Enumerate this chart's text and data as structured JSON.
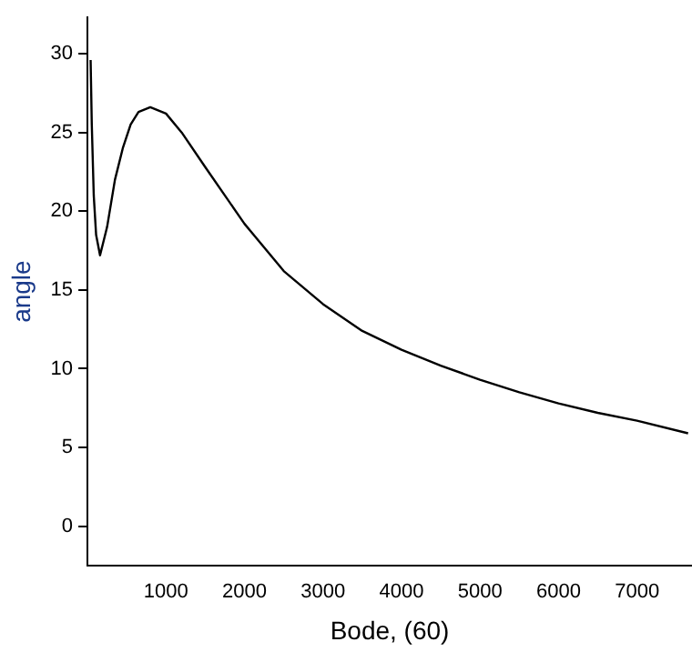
{
  "chart_data": {
    "type": "line",
    "xlabel": "Bode, (60)",
    "ylabel": "angle",
    "x": [
      40,
      55,
      80,
      110,
      160,
      250,
      350,
      450,
      550,
      650,
      800,
      1000,
      1200,
      1500,
      2000,
      2500,
      3000,
      3500,
      4000,
      4500,
      5000,
      5500,
      6000,
      6500,
      7000,
      7650
    ],
    "series": [
      {
        "color": "#000000",
        "values": [
          29.6,
          25.5,
          21,
          18.5,
          17.2,
          19,
          22,
          24,
          25.5,
          26.3,
          26.6,
          26.2,
          25,
          22.8,
          19.2,
          16.2,
          14.1,
          12.4,
          11.2,
          10.2,
          9.3,
          8.5,
          7.8,
          7.2,
          6.7,
          5.9
        ]
      }
    ],
    "xlim": [
      0,
      7700
    ],
    "xticks": [
      1000,
      2000,
      3000,
      4000,
      5000,
      6000,
      7000
    ],
    "ylim": [
      -2.5,
      32.3
    ],
    "yticks": [
      0,
      5,
      10,
      15,
      20,
      25,
      30
    ],
    "grid": false,
    "legend": false,
    "marker": "none",
    "line_style": "solid"
  }
}
